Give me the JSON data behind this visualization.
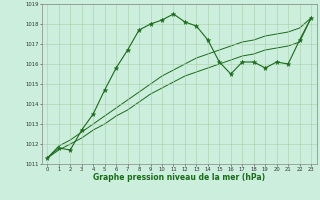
{
  "xlabel": "Graphe pression niveau de la mer (hPa)",
  "background_color": "#cceedd",
  "line_color": "#1a6b1a",
  "x_data": [
    0,
    1,
    2,
    3,
    4,
    5,
    6,
    7,
    8,
    9,
    10,
    11,
    12,
    13,
    14,
    15,
    16,
    17,
    18,
    19,
    20,
    21,
    22,
    23
  ],
  "y_main": [
    1011.3,
    1011.8,
    1011.7,
    1012.7,
    1013.5,
    1014.7,
    1015.8,
    1016.7,
    1017.7,
    1018.0,
    1018.2,
    1018.5,
    1018.1,
    1017.9,
    1017.2,
    1016.1,
    1015.5,
    1016.1,
    1016.1,
    1015.8,
    1016.1,
    1016.0,
    1017.2,
    1018.3
  ],
  "y_trend1": [
    1011.3,
    1011.9,
    1012.2,
    1012.6,
    1013.0,
    1013.4,
    1013.8,
    1014.2,
    1014.6,
    1015.0,
    1015.4,
    1015.7,
    1016.0,
    1016.3,
    1016.5,
    1016.7,
    1016.9,
    1017.1,
    1017.2,
    1017.4,
    1017.5,
    1017.6,
    1017.8,
    1018.3
  ],
  "y_trend2": [
    1011.3,
    1011.7,
    1012.0,
    1012.3,
    1012.7,
    1013.0,
    1013.4,
    1013.7,
    1014.1,
    1014.5,
    1014.8,
    1015.1,
    1015.4,
    1015.6,
    1015.8,
    1016.0,
    1016.2,
    1016.4,
    1016.5,
    1016.7,
    1016.8,
    1016.9,
    1017.1,
    1018.3
  ],
  "ylim": [
    1011.0,
    1019.0
  ],
  "xlim": [
    -0.5,
    23.5
  ],
  "yticks": [
    1011,
    1012,
    1013,
    1014,
    1015,
    1016,
    1017,
    1018,
    1019
  ],
  "xticks": [
    0,
    1,
    2,
    3,
    4,
    5,
    6,
    7,
    8,
    9,
    10,
    11,
    12,
    13,
    14,
    15,
    16,
    17,
    18,
    19,
    20,
    21,
    22,
    23
  ]
}
